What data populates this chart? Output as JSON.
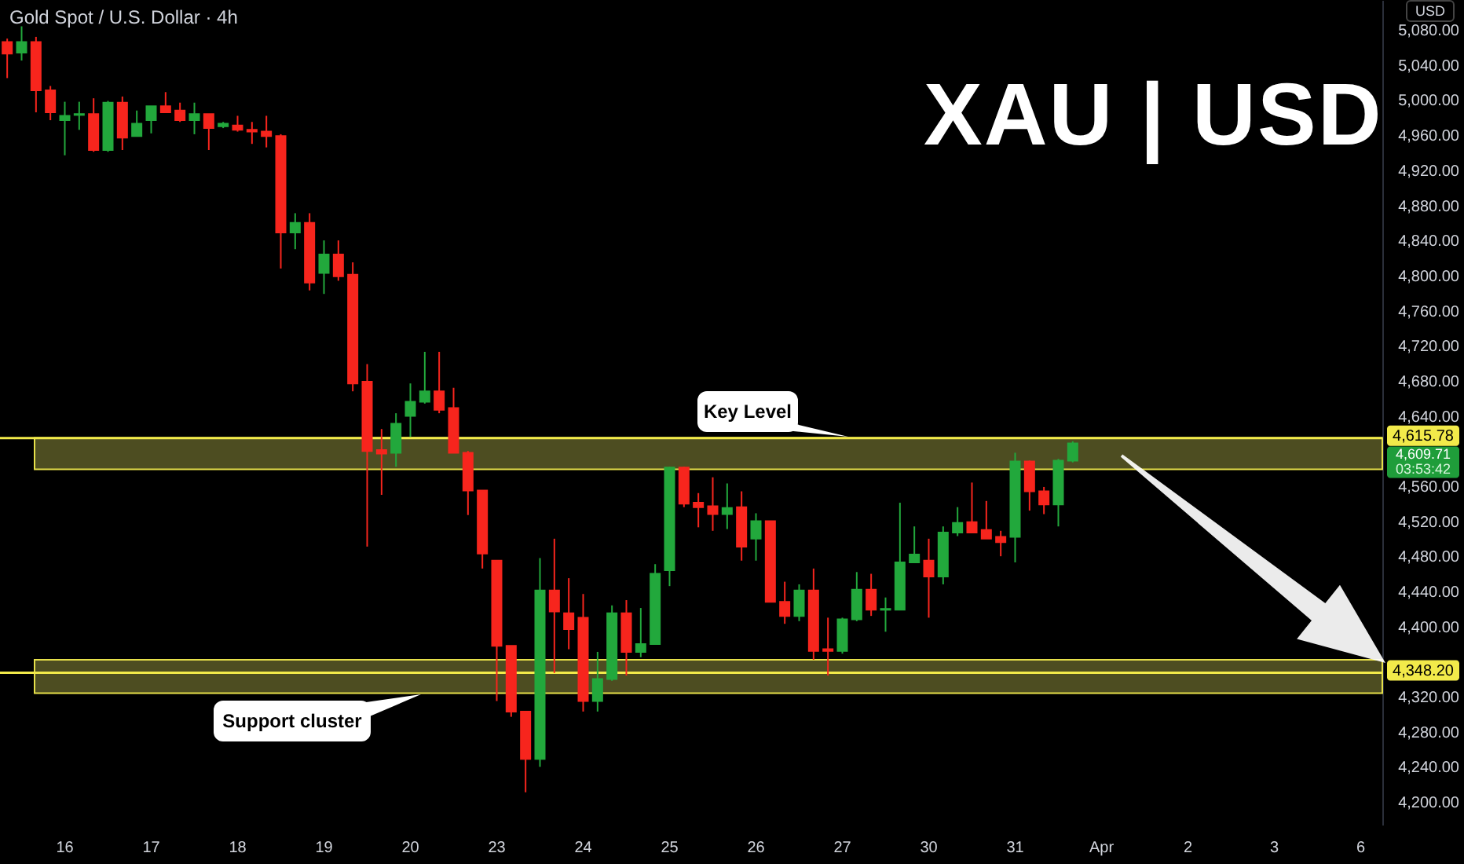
{
  "chart_data": {
    "type": "candlestick",
    "title": "XAU | USD",
    "subtitle": "Gold Spot / U.S. Dollar · 4h",
    "ylabel": "USD",
    "categories": [
      null,
      null,
      null,
      null,
      "16",
      null,
      null,
      null,
      null,
      null,
      "17",
      null,
      null,
      null,
      null,
      null,
      "18",
      null,
      null,
      null,
      null,
      null,
      "19",
      null,
      null,
      null,
      null,
      null,
      "20",
      null,
      null,
      null,
      null,
      null,
      "23",
      null,
      null,
      null,
      null,
      null,
      "24",
      null,
      null,
      null,
      null,
      null,
      "25",
      null,
      null,
      null,
      null,
      null,
      "26",
      null,
      null,
      null,
      null,
      null,
      "27",
      null,
      null,
      null,
      null,
      null,
      "30",
      null,
      null,
      null,
      null,
      null,
      "31",
      null,
      null,
      null,
      null,
      null,
      "Apr",
      null,
      null,
      null,
      null,
      null,
      "2",
      null,
      null,
      null,
      null,
      null,
      "3",
      null,
      null,
      null,
      null,
      null,
      "6",
      null
    ],
    "ohlc": [
      [
        5067,
        5071,
        5026,
        5054
      ],
      [
        5055,
        5085,
        5046,
        5067
      ],
      [
        5067,
        5073,
        4987,
        5012
      ],
      [
        5012,
        5017,
        4978,
        4987
      ],
      [
        4978,
        4999,
        4938,
        4983
      ],
      [
        4984,
        4999,
        4967,
        4985
      ],
      [
        4985,
        5003,
        4942,
        4944
      ],
      [
        4944,
        5000,
        4942,
        4998
      ],
      [
        4998,
        5005,
        4944,
        4958
      ],
      [
        4960,
        4989,
        4960,
        4974
      ],
      [
        4978,
        4994,
        4963,
        4994
      ],
      [
        4994,
        5010,
        4987,
        4987
      ],
      [
        4989,
        4998,
        4976,
        4978
      ],
      [
        4978,
        4998,
        4962,
        4985
      ],
      [
        4985,
        4985,
        4944,
        4969
      ],
      [
        4971,
        4976,
        4969,
        4974
      ],
      [
        4972,
        4983,
        4965,
        4967
      ],
      [
        4967,
        4976,
        4951,
        4965
      ],
      [
        4965,
        4983,
        4947,
        4960
      ],
      [
        4960,
        4962,
        4809,
        4850
      ],
      [
        4850,
        4872,
        4831,
        4861
      ],
      [
        4861,
        4872,
        4784,
        4793
      ],
      [
        4804,
        4841,
        4780,
        4825
      ],
      [
        4825,
        4841,
        4795,
        4800
      ],
      [
        4802,
        4816,
        4669,
        4678
      ],
      [
        4680,
        4700,
        4492,
        4601
      ],
      [
        4602,
        4626,
        4551,
        4598
      ],
      [
        4599,
        4644,
        4583,
        4632
      ],
      [
        4641,
        4678,
        4617,
        4657
      ],
      [
        4657,
        4714,
        4655,
        4669
      ],
      [
        4669,
        4714,
        4644,
        4648
      ],
      [
        4650,
        4673,
        4599,
        4599
      ],
      [
        4599,
        4601,
        4528,
        4556
      ],
      [
        4556,
        4556,
        4467,
        4484
      ],
      [
        4476,
        4476,
        4316,
        4379
      ],
      [
        4379,
        4379,
        4298,
        4304
      ],
      [
        4304,
        4304,
        4212,
        4250
      ],
      [
        4250,
        4479,
        4241,
        4442
      ],
      [
        4442,
        4501,
        4348,
        4418
      ],
      [
        4416,
        4456,
        4375,
        4398
      ],
      [
        4411,
        4438,
        4304,
        4316
      ],
      [
        4316,
        4372,
        4304,
        4341
      ],
      [
        4341,
        4425,
        4339,
        4416
      ],
      [
        4416,
        4431,
        4345,
        4372
      ],
      [
        4372,
        4422,
        4366,
        4381
      ],
      [
        4381,
        4472,
        4381,
        4461
      ],
      [
        4465,
        4583,
        4447,
        4582
      ],
      [
        4582,
        4583,
        4537,
        4541
      ],
      [
        4542,
        4553,
        4514,
        4537
      ],
      [
        4538,
        4571,
        4510,
        4529
      ],
      [
        4529,
        4564,
        4512,
        4536
      ],
      [
        4537,
        4555,
        4476,
        4492
      ],
      [
        4501,
        4530,
        4476,
        4521
      ],
      [
        4521,
        4521,
        4429,
        4429
      ],
      [
        4429,
        4452,
        4404,
        4413
      ],
      [
        4413,
        4449,
        4407,
        4442
      ],
      [
        4442,
        4467,
        4363,
        4373
      ],
      [
        4375,
        4411,
        4345,
        4373
      ],
      [
        4373,
        4411,
        4370,
        4409
      ],
      [
        4409,
        4463,
        4407,
        4443
      ],
      [
        4443,
        4461,
        4413,
        4420
      ],
      [
        4420,
        4434,
        4395,
        4421
      ],
      [
        4420,
        4542,
        4420,
        4474
      ],
      [
        4474,
        4515,
        4474,
        4483
      ],
      [
        4476,
        4501,
        4411,
        4458
      ],
      [
        4458,
        4515,
        4449,
        4508
      ],
      [
        4508,
        4537,
        4504,
        4519
      ],
      [
        4520,
        4565,
        4508,
        4508
      ],
      [
        4511,
        4544,
        4501,
        4501
      ],
      [
        4503,
        4510,
        4481,
        4497
      ],
      [
        4503,
        4599,
        4474,
        4589
      ],
      [
        4589,
        4590,
        4533,
        4555
      ],
      [
        4555,
        4560,
        4529,
        4540
      ],
      [
        4540,
        4592,
        4515,
        4590
      ],
      [
        4590,
        4612,
        4588,
        4609.71
      ],
      null,
      null,
      null,
      null,
      null,
      null,
      null,
      null,
      null,
      null,
      null,
      null,
      null,
      null,
      null,
      null,
      null,
      null,
      null,
      null,
      null
    ],
    "colors": [
      "#f7251d",
      "#22a83c",
      "#f7251d",
      "#f7251d",
      "#22a83c",
      "#22a83c",
      "#f7251d",
      "#22a83c",
      "#f7251d",
      "#22a83c",
      "#22a83c",
      "#f7251d",
      "#f7251d",
      "#22a83c",
      "#f7251d",
      "#22a83c",
      "#f7251d",
      "#f7251d",
      "#f7251d",
      "#f7251d",
      "#22a83c",
      "#f7251d",
      "#22a83c",
      "#f7251d",
      "#f7251d",
      "#f7251d",
      "#f7251d",
      "#22a83c",
      "#22a83c",
      "#22a83c",
      "#f7251d",
      "#f7251d",
      "#f7251d",
      "#f7251d",
      "#f7251d",
      "#f7251d",
      "#f7251d",
      "#22a83c",
      "#f7251d",
      "#f7251d",
      "#f7251d",
      "#22a83c",
      "#22a83c",
      "#f7251d",
      "#22a83c",
      "#22a83c",
      "#22a83c",
      "#f7251d",
      "#f7251d",
      "#f7251d",
      "#22a83c",
      "#f7251d",
      "#22a83c",
      "#f7251d",
      "#f7251d",
      "#22a83c",
      "#f7251d",
      "#f7251d",
      "#22a83c",
      "#22a83c",
      "#f7251d",
      "#22a83c",
      "#22a83c",
      "#22a83c",
      "#f7251d",
      "#22a83c",
      "#22a83c",
      "#f7251d",
      "#f7251d",
      "#f7251d",
      "#22a83c",
      "#f7251d",
      "#f7251d",
      "#22a83c",
      "#22a83c",
      null,
      null,
      null,
      null,
      null,
      null,
      null,
      null,
      null,
      null,
      null,
      null,
      null,
      null,
      null,
      null,
      null,
      null,
      null,
      null,
      null
    ],
    "ylim": [
      4175,
      5115
    ],
    "yticks": [
      {
        "value": 4200,
        "label": "4,200.00"
      },
      {
        "value": 4240,
        "label": "4,240.00"
      },
      {
        "value": 4280,
        "label": "4,280.00"
      },
      {
        "value": 4320,
        "label": "4,320.00"
      },
      {
        "value": 4400,
        "label": "4,400.00"
      },
      {
        "value": 4440,
        "label": "4,440.00"
      },
      {
        "value": 4480,
        "label": "4,480.00"
      },
      {
        "value": 4520,
        "label": "4,520.00"
      },
      {
        "value": 4560,
        "label": "4,560.00"
      },
      {
        "value": 4640,
        "label": "4,640.00"
      },
      {
        "value": 4680,
        "label": "4,680.00"
      },
      {
        "value": 4720,
        "label": "4,720.00"
      },
      {
        "value": 4760,
        "label": "4,760.00"
      },
      {
        "value": 4800,
        "label": "4,800.00"
      },
      {
        "value": 4840,
        "label": "4,840.00"
      },
      {
        "value": 4880,
        "label": "4,880.00"
      },
      {
        "value": 4920,
        "label": "4,920.00"
      },
      {
        "value": 4960,
        "label": "4,960.00"
      },
      {
        "value": 5000,
        "label": "5,000.00"
      },
      {
        "value": 5040,
        "label": "5,040.00"
      },
      {
        "value": 5080,
        "label": "5,080.00"
      }
    ],
    "bands": [
      {
        "axis": "y",
        "from": 4580,
        "to": 4616,
        "label": "Key Level",
        "color": "#8c8c3c"
      },
      {
        "axis": "y",
        "from": 4325,
        "to": 4363,
        "label": "Support cluster",
        "color": "#8c8c3c"
      }
    ],
    "ref_lines": [
      {
        "axis": "y",
        "value": 4615.78,
        "label": "4,615.78",
        "color": "#f2ea4a"
      },
      {
        "axis": "y",
        "value": 4348.2,
        "label": "4,348.20",
        "color": "#f2ea4a"
      }
    ],
    "annotations": [
      "4,609.71",
      "03:53:42"
    ]
  }
}
